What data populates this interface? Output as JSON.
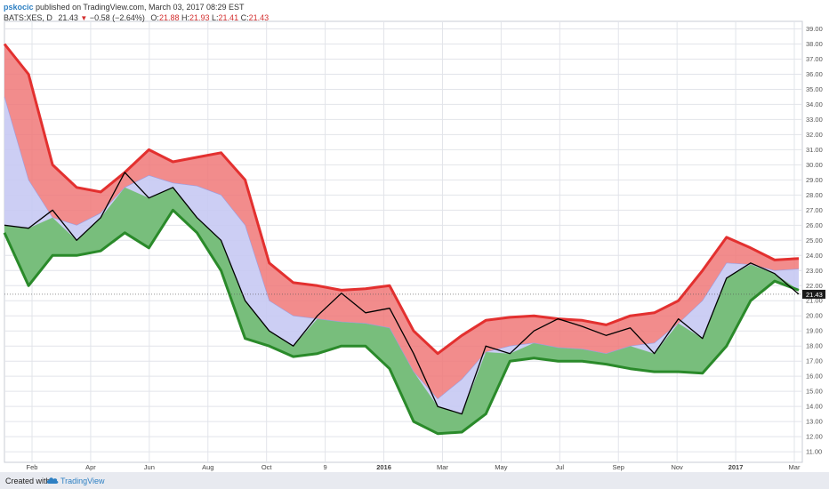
{
  "header": {
    "user": "pskocic",
    "published_text": "published on TradingView.com, March 03, 2017 08:29 EST",
    "symbol": "BATS:XES, D",
    "last": "21.43",
    "change": "−0.58 (−2.64%)",
    "open_label": "O:",
    "open_value": "21.88",
    "high_label": "H:",
    "high_value": "21.93",
    "low_label": "L:",
    "low_value": "21.41",
    "close_label": "C:",
    "close_value": "21.43"
  },
  "footer": {
    "created_with": "Created with",
    "brand": "TradingView"
  },
  "colors": {
    "upper_band": "#e3302f",
    "upper_fill": "#f07878",
    "middle_fill": "#c7c9f3",
    "lower_band": "#2a8a2a",
    "lower_fill": "#6fbd6f",
    "price": "#000000",
    "grid": "#e2e4ea",
    "price_tag": "#1a1a1a"
  },
  "chart_data": {
    "type": "line",
    "title": "",
    "x_ticks": [
      "Feb",
      "Apr",
      "Jun",
      "Aug",
      "Oct",
      "9",
      "2016",
      "Mar",
      "May",
      "Jul",
      "Sep",
      "Nov",
      "2017",
      "Mar"
    ],
    "y_ticks": [
      "11.00",
      "12.00",
      "13.00",
      "14.00",
      "15.00",
      "16.00",
      "17.00",
      "18.00",
      "19.00",
      "20.00",
      "21.00",
      "22.00",
      "23.00",
      "24.00",
      "25.00",
      "26.00",
      "27.00",
      "28.00",
      "29.00",
      "30.00",
      "31.00",
      "32.00",
      "33.00",
      "34.00",
      "35.00",
      "36.00",
      "37.00",
      "38.00",
      "39.00"
    ],
    "ylim": [
      10.3,
      39.5
    ],
    "last_price_label": "21.43",
    "last_price": 21.43,
    "x": [
      "Jan 2015",
      "early Feb",
      "mid Feb",
      "Mar",
      "Apr",
      "early May",
      "mid May",
      "Jun",
      "early Jul",
      "mid Jul",
      "Aug",
      "Sep",
      "Oct",
      "Nov",
      "Dec",
      "early Jan",
      "mid Jan",
      "Feb",
      "Mar 2016",
      "Apr",
      "May",
      "Jun",
      "Jul",
      "Aug",
      "Sep",
      "Oct",
      "Nov",
      "mid Nov",
      "early Dec",
      "mid Dec",
      "Jan 2017",
      "early Feb",
      "mid Feb",
      "Mar 2017"
    ],
    "series": [
      {
        "name": "Upper band",
        "values": [
          38.0,
          36.0,
          30.0,
          28.5,
          28.2,
          29.5,
          31.0,
          30.2,
          30.5,
          30.8,
          29.0,
          23.5,
          22.2,
          22.0,
          21.7,
          21.8,
          22.0,
          19.0,
          17.5,
          18.7,
          19.7,
          19.9,
          20.0,
          19.8,
          19.7,
          19.4,
          20.0,
          20.2,
          21.0,
          23.0,
          25.2,
          24.5,
          23.7,
          23.8
        ]
      },
      {
        "name": "Middle band",
        "values": [
          34.5,
          29.0,
          26.5,
          26.0,
          26.8,
          28.5,
          29.3,
          28.8,
          28.6,
          28.0,
          26.0,
          21.0,
          20.0,
          19.8,
          19.6,
          19.5,
          19.2,
          16.3,
          14.5,
          15.8,
          17.6,
          18.0,
          18.2,
          17.9,
          17.8,
          17.5,
          18.0,
          18.2,
          19.5,
          21.0,
          23.5,
          23.4,
          23.0,
          23.1
        ]
      },
      {
        "name": "Lower band",
        "values": [
          25.5,
          22.0,
          24.0,
          24.0,
          24.3,
          25.5,
          24.5,
          27.0,
          25.5,
          23.0,
          18.5,
          18.0,
          17.3,
          17.5,
          18.0,
          18.0,
          16.5,
          13.0,
          12.2,
          12.3,
          13.5,
          17.0,
          17.2,
          17.0,
          17.0,
          16.8,
          16.5,
          16.3,
          16.3,
          16.2,
          18.0,
          21.0,
          22.3,
          21.7
        ]
      },
      {
        "name": "Price",
        "values": [
          26.0,
          25.8,
          27.0,
          25.0,
          26.5,
          29.5,
          27.8,
          28.5,
          26.5,
          25.0,
          21.0,
          19.0,
          18.0,
          20.0,
          21.5,
          20.2,
          20.5,
          17.5,
          14.0,
          13.5,
          18.0,
          17.5,
          19.0,
          19.8,
          19.3,
          18.7,
          19.2,
          17.5,
          19.8,
          18.5,
          22.5,
          23.5,
          22.8,
          21.43
        ]
      }
    ]
  }
}
